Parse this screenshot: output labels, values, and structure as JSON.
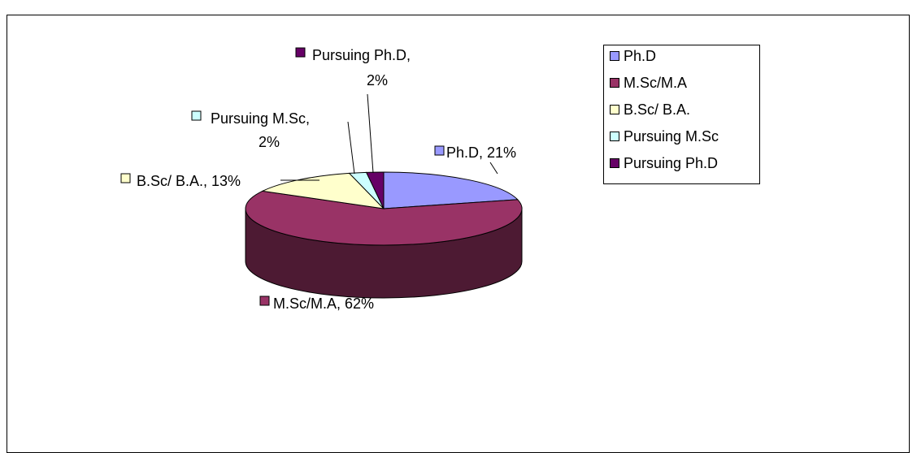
{
  "chart_data": {
    "type": "pie",
    "three_d": true,
    "slices": [
      {
        "label": "Ph.D",
        "value": 21,
        "data_label": "Ph.D, 21%",
        "color": "#9999FF"
      },
      {
        "label": "M.Sc/M.A",
        "value": 62,
        "data_label": "M.Sc/M.A, 62%",
        "color": "#993366"
      },
      {
        "label": "B.Sc/ B.A.",
        "value": 13,
        "data_label": "B.Sc/ B.A., 13%",
        "color": "#FFFFCC"
      },
      {
        "label": "Pursuing M.Sc",
        "value": 2,
        "data_label_lines": [
          "Pursuing M.Sc,",
          "2%"
        ],
        "color": "#CCFFFF"
      },
      {
        "label": "Pursuing Ph.D",
        "value": 2,
        "data_label_lines": [
          "Pursuing Ph.D,",
          "2%"
        ],
        "color": "#660066"
      }
    ],
    "legend": {
      "position": "right",
      "entries": [
        "Ph.D",
        "M.Sc/M.A",
        "B.Sc/ B.A.",
        "Pursuing M.Sc",
        "Pursuing Ph.D"
      ]
    }
  }
}
